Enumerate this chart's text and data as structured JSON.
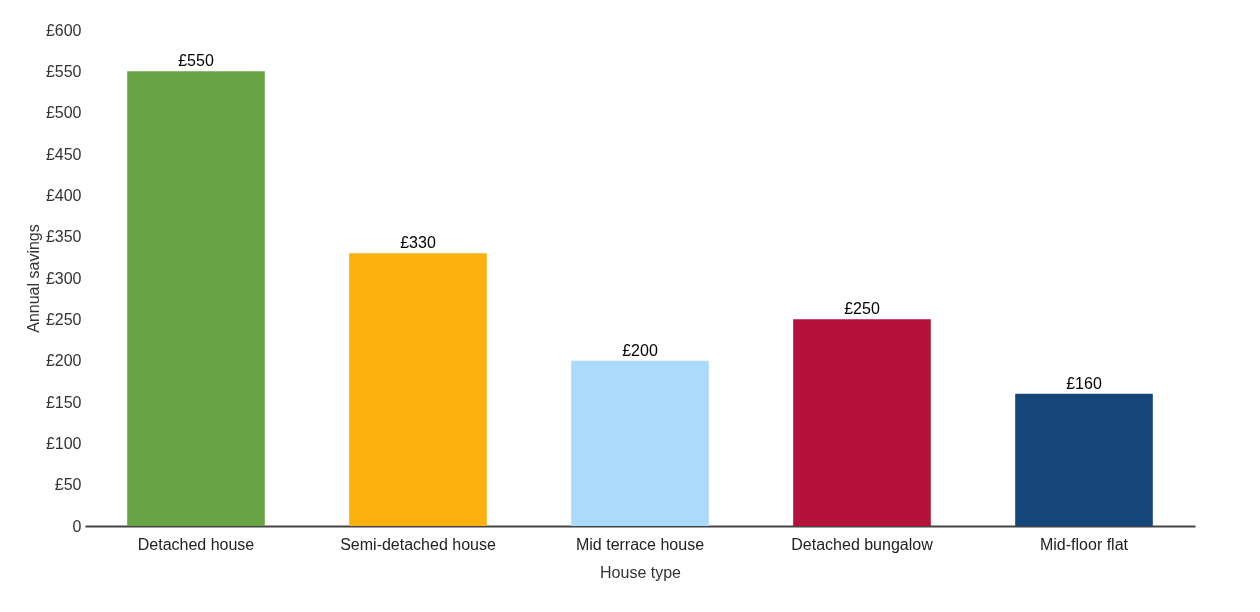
{
  "chart_data": {
    "type": "bar",
    "xlabel": "House type",
    "ylabel": "Annual savings",
    "categories": [
      "Detached house",
      "Semi-detached house",
      "Mid terrace house",
      "Detached bungalow",
      "Mid-floor flat"
    ],
    "values": [
      550,
      330,
      200,
      250,
      160
    ],
    "colors": [
      "#68a446",
      "#fcb00f",
      "#aadbfd",
      "#b5123b",
      "#154679"
    ],
    "value_labels": [
      "£550",
      "£330",
      "£200",
      "£250",
      "£160"
    ],
    "ylim": [
      0,
      600
    ],
    "yticks": [
      0,
      {
        "value": 50,
        "label": "£50"
      },
      {
        "value": 100,
        "label": "£100"
      },
      {
        "value": 150,
        "label": "£150"
      },
      {
        "value": 200,
        "label": "£200"
      },
      {
        "value": 250,
        "label": "£250"
      },
      {
        "value": 300,
        "label": "£300"
      },
      {
        "value": 350,
        "label": "£350"
      },
      {
        "value": 400,
        "label": "£400"
      },
      {
        "value": 450,
        "label": "£450"
      },
      {
        "value": 500,
        "label": "£500"
      },
      {
        "value": 550,
        "label": "£550"
      },
      {
        "value": 600,
        "label": "£600"
      }
    ],
    "grid": false
  }
}
